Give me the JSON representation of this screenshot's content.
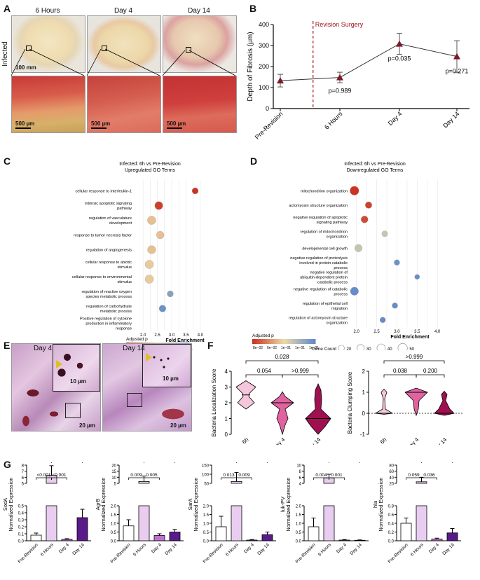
{
  "panels": {
    "A": "A",
    "B": "B",
    "C": "C",
    "D": "D",
    "E": "E",
    "F": "F",
    "G": "G"
  },
  "panel_a": {
    "row_label": "Infected",
    "timepoints": [
      "6 Hours",
      "Day 4",
      "Day 14"
    ],
    "scale_top": "100 mm",
    "scale_bottom": "500 µm"
  },
  "panel_e": {
    "timepoints": [
      "Day 4",
      "Day 14"
    ],
    "scale_inset": "10 µm",
    "scale_main": "20 µm"
  },
  "chart_data": [
    {
      "id": "B",
      "type": "line",
      "categories": [
        "Pre-Revision",
        "6 Hours",
        "Day 4",
        "Day 14"
      ],
      "values": [
        133,
        148,
        308,
        248
      ],
      "errors": [
        30,
        25,
        50,
        75
      ],
      "ylabel": "Depth of Fibrosis (µm)",
      "ylim": [
        0,
        400
      ],
      "yticks": [
        "0",
        "100",
        "200",
        "300",
        "400"
      ],
      "annotation": "Revision Surgery",
      "pvalues": [
        "p=0.989",
        "p=0.035",
        "p=0.271"
      ],
      "colors": {
        "marker": "#7a1a2a",
        "line": "#333333",
        "annotation": "#a3161e"
      }
    },
    {
      "id": "C",
      "type": "scatter",
      "title": "Infected: 6h vs Pre-Revision",
      "subtitle": "Upregulated GO Terms",
      "xlabel": "Fold Enrichment",
      "xticks": [
        "2.0",
        "2.5",
        "3.0",
        "3.5",
        "4.0"
      ],
      "terms": [
        {
          "label": "cellular response to interleukin-1",
          "x": 3.82,
          "count": 15,
          "p": 0.002
        },
        {
          "label": "intrinsic apoptotic signaling pathway",
          "x": 2.55,
          "count": 25,
          "p": 0.0022
        },
        {
          "label": "regulation of vasculature development",
          "x": 2.3,
          "count": 28,
          "p": 0.0045
        },
        {
          "label": "response to tumor necrosis factor",
          "x": 2.6,
          "count": 22,
          "p": 0.0045
        },
        {
          "label": "regulation of angiogenesis",
          "x": 2.3,
          "count": 26,
          "p": 0.0045
        },
        {
          "label": "cellular response to abiotic stimulus",
          "x": 2.22,
          "count": 28,
          "p": 0.0047
        },
        {
          "label": "cellular response to environmental stimulus",
          "x": 2.22,
          "count": 28,
          "p": 0.0047
        },
        {
          "label": "regulation of reactive oxygen species metabolic process",
          "x": 2.95,
          "count": 15,
          "p": 0.0072
        },
        {
          "label": "regulation of carbohydrate metabolic process",
          "x": 2.68,
          "count": 18,
          "p": 0.0078
        },
        {
          "label": "Positive regulation of cytokine production in inflammatory response",
          "x": 0,
          "count": 0,
          "p": 0
        }
      ],
      "legend_size_title": "Gene Count",
      "legend_sizes": [
        "10",
        "20",
        "30"
      ],
      "legend_color_title": "Adjusted p",
      "legend_color_ticks": [
        "2e−03",
        "4e−03",
        "6e−03",
        "8e−03"
      ]
    },
    {
      "id": "D",
      "type": "scatter",
      "title": "Infected: 6h vs Pre-Revision",
      "subtitle": "Downregulated GO Terms",
      "xlabel": "Fold Enrichment",
      "xticks": [
        "2.0",
        "2.5",
        "3.0",
        "3.5",
        "4.0"
      ],
      "terms": [
        {
          "label": "mitochondrion organization",
          "x": 1.95,
          "count": 45,
          "p": 1e-08
        },
        {
          "label": "actomyosin structure organization",
          "x": 2.3,
          "count": 25,
          "p": 2e-08
        },
        {
          "label": "negative regulation of apoptotic signaling pathway",
          "x": 2.2,
          "count": 28,
          "p": 3e-08
        },
        {
          "label": "regulation of mitochondrion organization",
          "x": 2.7,
          "count": 20,
          "p": 0.0003
        },
        {
          "label": "developmental cell growth",
          "x": 2.05,
          "count": 32,
          "p": 0.0003
        },
        {
          "label": "negative regulation of proteolysis involved in protein catabolic process",
          "x": 3.0,
          "count": 18,
          "p": 0.05
        },
        {
          "label": "negative regulation of ubiquitin-dependent protein catabolic process",
          "x": 3.5,
          "count": 14,
          "p": 0.08
        },
        {
          "label": "negative regulation of catabolic process",
          "x": 1.95,
          "count": 38,
          "p": 0.1
        },
        {
          "label": "regulation of epithelial cell migration",
          "x": 2.95,
          "count": 18,
          "p": 0.1
        },
        {
          "label": "regulation of actomyosin structure organization",
          "x": 2.65,
          "count": 18,
          "p": 0.1
        }
      ],
      "legend_size_title": "Gene Count",
      "legend_sizes": [
        "20",
        "30",
        "40",
        "50"
      ],
      "legend_color_title": "Adjusted p",
      "legend_color_ticks": [
        "8e−02",
        "6e−02",
        "1e−01",
        "1e−01",
        "1e−01"
      ]
    },
    {
      "id": "F1",
      "type": "violin",
      "categories": [
        "6h",
        "Day 4",
        "Day 14"
      ],
      "ylabel": "Bacteria Localization Score",
      "ylim": [
        0,
        4
      ],
      "yticks": [
        "0",
        "1",
        "2",
        "3",
        "4"
      ],
      "medians": [
        2.5,
        2,
        1
      ],
      "pvalues": {
        "a": "0.054",
        "b": ">0.999",
        "c": "0.028"
      },
      "colors": [
        "#f6c6dc",
        "#e063a0",
        "#a01050"
      ]
    },
    {
      "id": "F2",
      "type": "violin",
      "categories": [
        "6h",
        "Day 4",
        "Day 14"
      ],
      "ylabel": "Bacteria Clumping Score",
      "ylim": [
        -1,
        2
      ],
      "yticks": [
        "-1",
        "0",
        "1",
        "2"
      ],
      "medians": [
        0,
        1,
        0
      ],
      "pvalues": {
        "a": "0.038",
        "b": "0.200",
        "c": ">0.999"
      },
      "colors": [
        "#f6c6dc",
        "#e063a0",
        "#a01050"
      ]
    },
    {
      "id": "G",
      "type": "bar",
      "categories": [
        "Pre-Revision",
        "6 Hours",
        "Day 4",
        "Day 14"
      ],
      "ylabel_suffix": "Normalized Expression",
      "colors": [
        "#ffffff",
        "#e8cdf0",
        "#c070d0",
        "#5a1a8a"
      ],
      "subplots": [
        {
          "gene": "SodA",
          "values": [
            0.08,
            6.3,
            0.02,
            0.33
          ],
          "errors": [
            0.03,
            1.6,
            0.01,
            0.12
          ],
          "upper_ticks": [
            "5",
            "6",
            "7",
            "8"
          ],
          "lower_ticks": [
            "0.0",
            "0.1",
            "0.2",
            "0.3",
            "0.4",
            "0.5"
          ],
          "pvalues": [
            "<0.001",
            "<0.001",
            "<0.001"
          ]
        },
        {
          "gene": "AgrB",
          "values": [
            0.85,
            6.5,
            0.3,
            0.5
          ],
          "errors": [
            0.35,
            4.5,
            0.1,
            0.15
          ],
          "upper_ticks": [
            "5",
            "10",
            "15",
            "20"
          ],
          "lower_ticks": [
            "0.0",
            "0.5",
            "1.0",
            "1.5",
            "2.0"
          ],
          "pvalues": [
            "0.009",
            "0.005",
            "0.005"
          ]
        },
        {
          "gene": "SarA",
          "values": [
            0.8,
            60,
            0.04,
            0.35
          ],
          "errors": [
            0.6,
            50,
            0.03,
            0.15
          ],
          "upper_ticks": [
            "50",
            "100",
            "150"
          ],
          "lower_ticks": [
            "0.0",
            "0.5",
            "1.0",
            "1.5",
            "2.0"
          ],
          "pvalues": [
            "0.013",
            "0.009",
            "0.010"
          ]
        },
        {
          "gene": "luk-PV",
          "values": [
            0.8,
            5.8,
            0.04,
            0.03
          ],
          "errors": [
            0.5,
            1.2,
            0.03,
            0.02
          ],
          "upper_ticks": [
            "4",
            "6",
            "8",
            "10"
          ],
          "lower_ticks": [
            "0.0",
            "0.5",
            "1.0",
            "1.5",
            "2.0"
          ],
          "pvalues": [
            "0.004",
            "0.001",
            "0.002"
          ]
        },
        {
          "gene": "hla",
          "values": [
            0.4,
            25,
            0.04,
            0.18
          ],
          "errors": [
            0.12,
            15,
            0.02,
            0.1
          ],
          "upper_ticks": [
            "20",
            "40",
            "60",
            "80"
          ],
          "lower_ticks": [
            "0.0",
            "0.2",
            "0.4",
            "0.6",
            "0.8"
          ],
          "pvalues": [
            "0.059",
            "0.036",
            "0.045"
          ]
        }
      ]
    }
  ]
}
